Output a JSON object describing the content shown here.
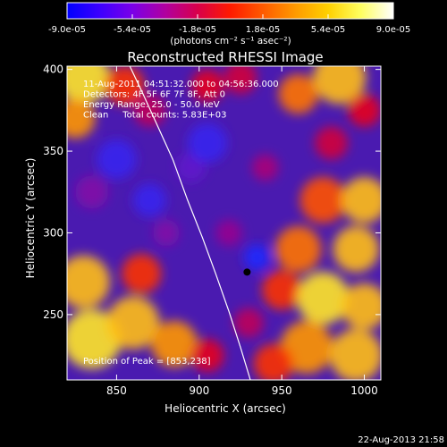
{
  "colorbar": {
    "ticks": [
      "-9.0e-05",
      "-5.4e-05",
      "-1.8e-05",
      "1.8e-05",
      "5.4e-05",
      "9.0e-05"
    ],
    "unit_label": "(photons cm⁻² s⁻¹ asec⁻²)",
    "stops": [
      "#0000ff",
      "#3c00ff",
      "#7a00e8",
      "#b000a0",
      "#d8004a",
      "#ff1a00",
      "#ff5a00",
      "#ff9a00",
      "#ffd000",
      "#ffff60",
      "#ffffff"
    ]
  },
  "chart_data": {
    "type": "heatmap",
    "title": "Reconstructed RHESSI Image",
    "xlabel": "Heliocentric X (arcsec)",
    "ylabel": "Heliocentric Y (arcsec)",
    "xlim": [
      820,
      1010
    ],
    "ylim": [
      210,
      402
    ],
    "x_ticks": [
      850,
      900,
      950,
      1000
    ],
    "y_ticks": [
      250,
      300,
      350,
      400
    ],
    "annotations": [
      "11-Aug-2011 04:51:32.000 to 04:56:36.000",
      "Detectors: 4F 5F 6F 7F 8F, Att 0",
      "Energy Range: 25.0 - 50.0 keV",
      "Clean     Total counts: 5.83E+03"
    ],
    "peak_label": "Position of Peak = [853,238]",
    "peak_position": [
      853,
      238
    ],
    "limb_curve": [
      [
        858,
        402
      ],
      [
        866,
        385
      ],
      [
        875,
        365
      ],
      [
        884,
        345
      ],
      [
        893,
        320
      ],
      [
        902,
        297
      ],
      [
        910,
        275
      ],
      [
        918,
        252
      ],
      [
        925,
        230
      ],
      [
        931,
        210
      ]
    ],
    "detector_marker": [
      929,
      276
    ],
    "blobs": [
      {
        "x": 830,
        "y": 395,
        "v": 0.95,
        "r": 16
      },
      {
        "x": 855,
        "y": 390,
        "v": 0.7,
        "r": 12
      },
      {
        "x": 825,
        "y": 370,
        "v": 0.85,
        "r": 12
      },
      {
        "x": 870,
        "y": 375,
        "v": 0.5,
        "r": 10
      },
      {
        "x": 835,
        "y": 325,
        "v": 0.35,
        "r": 10
      },
      {
        "x": 830,
        "y": 270,
        "v": 0.9,
        "r": 16
      },
      {
        "x": 835,
        "y": 235,
        "v": 0.95,
        "r": 18
      },
      {
        "x": 860,
        "y": 245,
        "v": 0.9,
        "r": 16
      },
      {
        "x": 865,
        "y": 275,
        "v": 0.7,
        "r": 12
      },
      {
        "x": 885,
        "y": 232,
        "v": 0.85,
        "r": 14
      },
      {
        "x": 905,
        "y": 225,
        "v": 0.6,
        "r": 10
      },
      {
        "x": 880,
        "y": 300,
        "v": 0.35,
        "r": 8
      },
      {
        "x": 905,
        "y": 390,
        "v": 0.6,
        "r": 10
      },
      {
        "x": 925,
        "y": 395,
        "v": 0.55,
        "r": 10
      },
      {
        "x": 960,
        "y": 385,
        "v": 0.8,
        "r": 12
      },
      {
        "x": 985,
        "y": 395,
        "v": 0.9,
        "r": 16
      },
      {
        "x": 1000,
        "y": 375,
        "v": 0.6,
        "r": 10
      },
      {
        "x": 980,
        "y": 355,
        "v": 0.55,
        "r": 10
      },
      {
        "x": 940,
        "y": 340,
        "v": 0.45,
        "r": 8
      },
      {
        "x": 975,
        "y": 320,
        "v": 0.75,
        "r": 14
      },
      {
        "x": 1000,
        "y": 320,
        "v": 0.9,
        "r": 14
      },
      {
        "x": 960,
        "y": 290,
        "v": 0.8,
        "r": 14
      },
      {
        "x": 995,
        "y": 290,
        "v": 0.9,
        "r": 14
      },
      {
        "x": 950,
        "y": 265,
        "v": 0.7,
        "r": 12
      },
      {
        "x": 975,
        "y": 260,
        "v": 0.95,
        "r": 16
      },
      {
        "x": 1000,
        "y": 255,
        "v": 0.9,
        "r": 14
      },
      {
        "x": 965,
        "y": 230,
        "v": 0.85,
        "r": 16
      },
      {
        "x": 995,
        "y": 225,
        "v": 0.9,
        "r": 16
      },
      {
        "x": 945,
        "y": 220,
        "v": 0.7,
        "r": 12
      },
      {
        "x": 930,
        "y": 245,
        "v": 0.5,
        "r": 9
      },
      {
        "x": 918,
        "y": 300,
        "v": 0.4,
        "r": 8
      },
      {
        "x": 895,
        "y": 340,
        "v": 0.25,
        "r": 9
      },
      {
        "x": 850,
        "y": 345,
        "v": 0.1,
        "r": 12
      },
      {
        "x": 905,
        "y": 355,
        "v": 0.1,
        "r": 12
      },
      {
        "x": 935,
        "y": 285,
        "v": 0.0,
        "r": 8
      },
      {
        "x": 870,
        "y": 320,
        "v": 0.1,
        "r": 10
      }
    ]
  },
  "footer": {
    "date": "22-Aug-2013 21:58"
  }
}
